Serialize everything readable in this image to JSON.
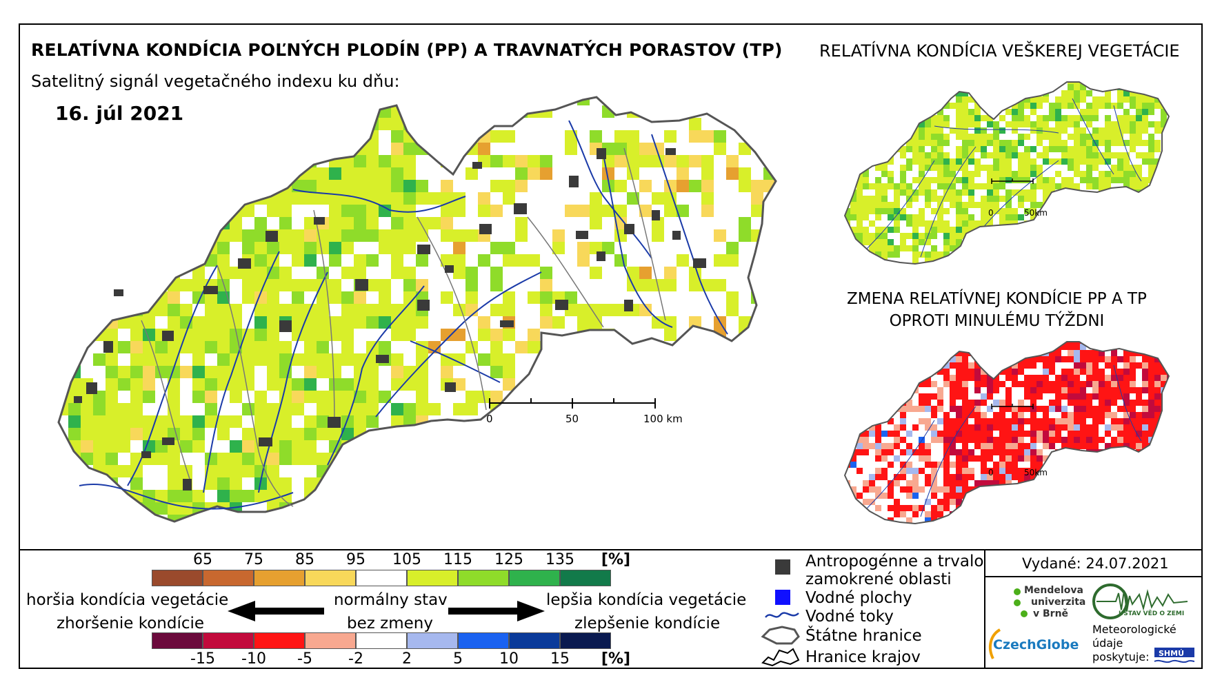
{
  "titles": {
    "main": "RELATÍVNA KONDÍCIA POĽNÝCH PLODÍN (PP) A TRAVNATÝCH PORASTOV (TP)",
    "subtitle": "Satelitný signál vegetačného indexu ku dňu:",
    "date": "16. júl 2021",
    "right_top": "RELATÍVNA KONDÍCIA VEŠKEREJ VEGETÁCIE",
    "right_bottom_1": "ZMENA RELATÍVNEJ KONDÍCIE PP A TP",
    "right_bottom_2": "OPROTI MINULÉMU TÝŽDNI"
  },
  "main_map_scale": {
    "labels": [
      "0",
      "50",
      "100 km"
    ]
  },
  "small_map_scale": {
    "labels": [
      "0",
      "50km"
    ]
  },
  "legend": {
    "condition_ticks": [
      "65",
      "75",
      "85",
      "95",
      "105",
      "115",
      "125",
      "135"
    ],
    "condition_unit": "[%]",
    "condition_colors": [
      "#9a4a2c",
      "#c8682f",
      "#e6a030",
      "#f8d85a",
      "#ffffff",
      "#d8ef2a",
      "#8fdc2a",
      "#2fb24c",
      "#127a4a"
    ],
    "change_ticks": [
      "-15",
      "-10",
      "-5",
      "-2",
      "2",
      "5",
      "10",
      "15"
    ],
    "change_unit": "[%]",
    "change_colors": [
      "#6b0a3c",
      "#c20a3c",
      "#ff1414",
      "#f8a890",
      "#ffffff",
      "#a6b8ee",
      "#1a62f0",
      "#0a3a9a",
      "#0a1a50"
    ],
    "worse_1": "horšia kondícia vegetácie",
    "worse_2": "zhoršenie kondície",
    "normal_1": "normálny stav",
    "normal_2": "bez zmeny",
    "better_1": "lepšia kondícia vegetácie",
    "better_2": "zlepšenie kondície"
  },
  "map_legend": {
    "anthropogenic_1": "Antropogénne a trvalo",
    "anthropogenic_2": "zamokrené oblasti",
    "water_areas": "Vodné plochy",
    "water_flows": "Vodné toky",
    "state_border": "Štátne hranice",
    "region_border": "Hranice krajov"
  },
  "issued": "Vydané: 24.07.2021",
  "logos": {
    "mendel_1": "Mendelova",
    "mendel_2": "univerzita",
    "mendel_3": "v Brně",
    "czechglobe": "CzechGlobe",
    "ustav": "ÚSTAV VĚD O ZEMI",
    "meteo_1": "Meteorologické",
    "meteo_2": "údaje",
    "meteo_3": "poskytuje:",
    "shmu": "SHMÚ"
  },
  "colors": {
    "green_light": "#d8ef2a",
    "green_mid": "#8fdc2a",
    "green_dark": "#2fb24c",
    "yellow": "#f8d85a",
    "orange": "#e6a030",
    "red": "#ff1414",
    "pink": "#f8a890",
    "blue_light": "#a6b8ee",
    "blue": "#1a62f0",
    "urban": "#3a3a3a",
    "river": "#1a3aa8"
  }
}
